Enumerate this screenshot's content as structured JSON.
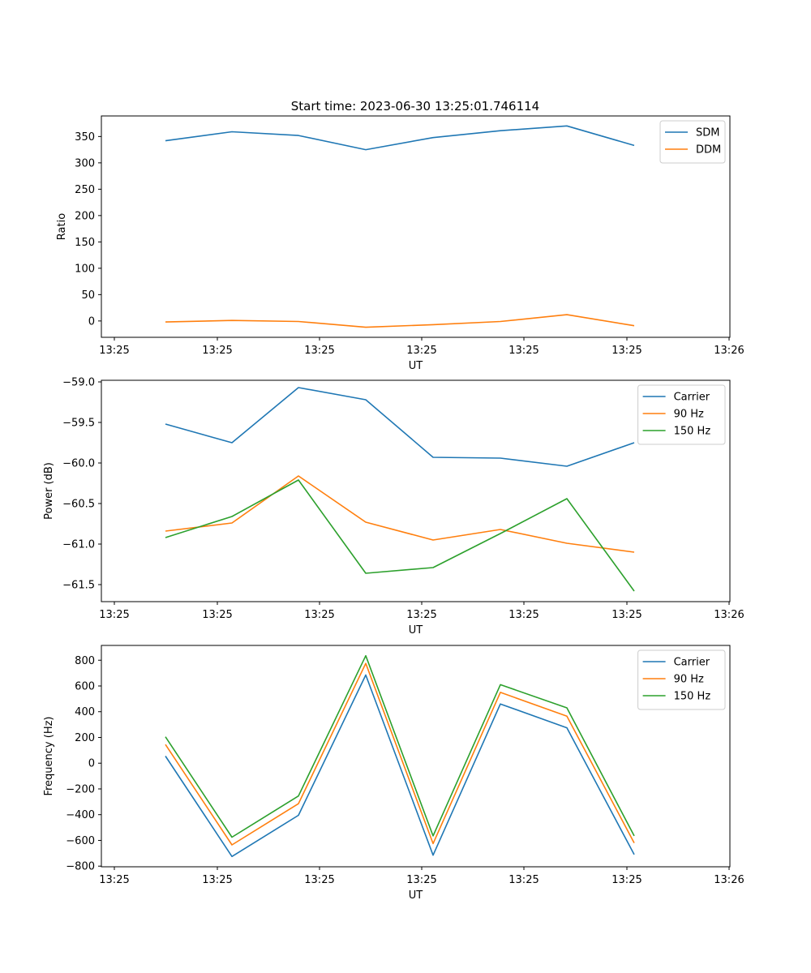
{
  "figure_title": "Start time: 2023-06-30 13:25:01.746114",
  "colors": {
    "blue": "#1f77b4",
    "orange": "#ff7f0e",
    "green": "#2ca02c"
  },
  "chart_data": [
    {
      "type": "line",
      "title": "Start time: 2023-06-30 13:25:01.746114",
      "xlabel": "UT",
      "ylabel": "Ratio",
      "x_tick_labels": [
        "13:25",
        "13:25",
        "13:25",
        "13:25",
        "13:25",
        "13:25",
        "13:26"
      ],
      "y_ticks": [
        0,
        50,
        100,
        150,
        200,
        250,
        300,
        350
      ],
      "ylim": [
        -31,
        389
      ],
      "grid": false,
      "legend_position": "top-right",
      "series": [
        {
          "name": "SDM",
          "color": "#1f77b4",
          "values": [
            342,
            359,
            352,
            325,
            348,
            361,
            370,
            333
          ]
        },
        {
          "name": "DDM",
          "color": "#ff7f0e",
          "values": [
            -2,
            1,
            -1,
            -12,
            -7,
            -1,
            12,
            -9
          ]
        }
      ]
    },
    {
      "type": "line",
      "title": "",
      "xlabel": "UT",
      "ylabel": "Power (dB)",
      "x_tick_labels": [
        "13:25",
        "13:25",
        "13:25",
        "13:25",
        "13:25",
        "13:25",
        "13:26"
      ],
      "y_ticks": [
        -61.5,
        -61.0,
        -60.5,
        -60.0,
        -59.5,
        -59.0
      ],
      "y_tick_labels": [
        "−61.5",
        "−61.0",
        "−60.5",
        "−60.0",
        "−59.5",
        "−59.0"
      ],
      "ylim": [
        -61.71,
        -58.98
      ],
      "grid": false,
      "legend_position": "top-right",
      "series": [
        {
          "name": "Carrier",
          "color": "#1f77b4",
          "values": [
            -59.52,
            -59.75,
            -59.07,
            -59.22,
            -59.93,
            -59.94,
            -60.04,
            -59.75
          ]
        },
        {
          "name": "90 Hz",
          "color": "#ff7f0e",
          "values": [
            -60.84,
            -60.74,
            -60.16,
            -60.73,
            -60.95,
            -60.82,
            -60.99,
            -61.1
          ]
        },
        {
          "name": "150 Hz",
          "color": "#2ca02c",
          "values": [
            -60.92,
            -60.66,
            -60.21,
            -61.36,
            -61.29,
            -60.87,
            -60.44,
            -61.58
          ]
        }
      ]
    },
    {
      "type": "line",
      "title": "",
      "xlabel": "UT",
      "ylabel": "Frequency (Hz)",
      "x_tick_labels": [
        "13:25",
        "13:25",
        "13:25",
        "13:25",
        "13:25",
        "13:25",
        "13:26"
      ],
      "y_ticks": [
        -800,
        -600,
        -400,
        -200,
        0,
        200,
        400,
        600,
        800
      ],
      "y_tick_labels": [
        "−800",
        "−600",
        "−400",
        "−200",
        "0",
        "200",
        "400",
        "600",
        "800"
      ],
      "ylim": [
        -805,
        915
      ],
      "grid": false,
      "legend_position": "top-right",
      "series": [
        {
          "name": "Carrier",
          "color": "#1f77b4",
          "values": [
            55,
            -725,
            -405,
            685,
            -715,
            460,
            275,
            -710
          ]
        },
        {
          "name": "90 Hz",
          "color": "#ff7f0e",
          "values": [
            145,
            -635,
            -315,
            775,
            -625,
            550,
            365,
            -620
          ]
        },
        {
          "name": "150 Hz",
          "color": "#2ca02c",
          "values": [
            205,
            -575,
            -255,
            835,
            -565,
            610,
            430,
            -565
          ]
        }
      ]
    }
  ]
}
